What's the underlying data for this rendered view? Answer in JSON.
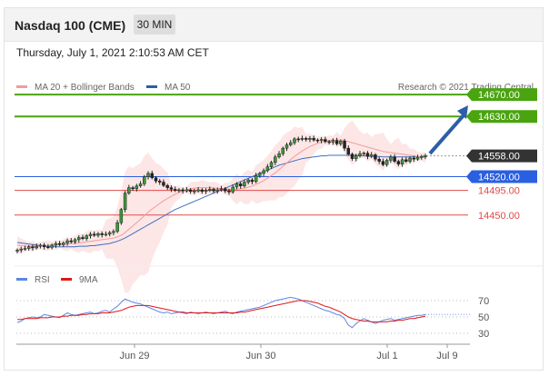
{
  "header": {
    "title": "Nasdaq 100 (CME)",
    "timeframe": "30 MIN"
  },
  "datetime": "Thursday, July 1, 2021 2:10:53 AM CET",
  "legend": {
    "ma20": "MA 20 + Bollinger Bands",
    "ma50": "MA 50",
    "credit": "Research © 2021 Trading Central",
    "rsi": "RSI",
    "ma9": "9MA"
  },
  "colors": {
    "green": "#4aa40f",
    "blue": "#2a5fe0",
    "red": "#e04a4a",
    "ma20": "#f29b9b",
    "ma50": "#3f6fc0",
    "arrow": "#2d5ea8",
    "current": "#333333",
    "rsi": "#5b86e5",
    "ma9": "#e01818"
  },
  "levels": [
    {
      "value": "14670.00",
      "type": "resistance",
      "color": "#4aa40f"
    },
    {
      "value": "14630.00",
      "type": "resistance",
      "color": "#4aa40f"
    },
    {
      "value": "14558.00",
      "type": "current",
      "color": "#333333"
    },
    {
      "value": "14520.00",
      "type": "pivot",
      "color": "#2a5fe0"
    },
    {
      "value": "14495.00",
      "type": "support",
      "color": "#e04a4a"
    },
    {
      "value": "14450.00",
      "type": "support",
      "color": "#e04a4a"
    }
  ],
  "rsi_levels": [
    "70",
    "50",
    "30"
  ],
  "x_labels": [
    "Jun 29",
    "Jun 30",
    "Jul 1",
    "Jul 9"
  ],
  "chart_data": {
    "type": "candlestick",
    "y_range": [
      14370,
      14690
    ],
    "closes": [
      14386,
      14388,
      14389,
      14392,
      14390,
      14393,
      14395,
      14392,
      14391,
      14395,
      14398,
      14396,
      14399,
      14403,
      14401,
      14405,
      14409,
      14407,
      14412,
      14415,
      14413,
      14416,
      14414,
      14415,
      14418,
      14420,
      14436,
      14460,
      14490,
      14500,
      14498,
      14503,
      14507,
      14520,
      14526,
      14518,
      14512,
      14510,
      14504,
      14500,
      14497,
      14495,
      14496,
      14494,
      14496,
      14493,
      14494,
      14496,
      14493,
      14495,
      14497,
      14494,
      14496,
      14498,
      14494,
      14492,
      14501,
      14507,
      14503,
      14510,
      14514,
      14511,
      14522,
      14526,
      14531,
      14538,
      14546,
      14556,
      14562,
      14572,
      14578,
      14582,
      14589,
      14588,
      14590,
      14588,
      14590,
      14587,
      14586,
      14588,
      14584,
      14583,
      14586,
      14580,
      14585,
      14572,
      14561,
      14553,
      14558,
      14562,
      14563,
      14557,
      14560,
      14552,
      14548,
      14542,
      14550,
      14556,
      14548,
      14543,
      14551,
      14548,
      14554,
      14552,
      14555,
      14557,
      14558
    ],
    "ma20": [
      14395,
      14394,
      14393,
      14393,
      14393,
      14393,
      14394,
      14394,
      14394,
      14395,
      14395,
      14396,
      14396,
      14397,
      14398,
      14398,
      14399,
      14400,
      14401,
      14402,
      14403,
      14404,
      14405,
      14406,
      14407,
      14408,
      14410,
      14413,
      14418,
      14424,
      14430,
      14436,
      14442,
      14449,
      14455,
      14461,
      14466,
      14471,
      14476,
      14480,
      14484,
      14488,
      14491,
      14494,
      14496,
      14498,
      14499,
      14500,
      14500,
      14500,
      14500,
      14499,
      14499,
      14498,
      14498,
      14497,
      14497,
      14497,
      14498,
      14499,
      14501,
      14503,
      14506,
      14509,
      14513,
      14517,
      14522,
      14527,
      14533,
      14539,
      14545,
      14551,
      14557,
      14562,
      14567,
      14571,
      14575,
      14578,
      14581,
      14583,
      14585,
      14586,
      14587,
      14587,
      14587,
      14586,
      14584,
      14582,
      14580,
      14578,
      14576,
      14574,
      14572,
      14570,
      14568,
      14566,
      14565,
      14564,
      14563,
      14562,
      14561,
      14560,
      14559,
      14558,
      14557,
      14556,
      14555
    ],
    "ma50": [
      14400,
      14399,
      14398,
      14397,
      14396,
      14395,
      14394,
      14394,
      14393,
      14393,
      14392,
      14392,
      14392,
      14392,
      14392,
      14392,
      14393,
      14393,
      14393,
      14394,
      14394,
      14395,
      14396,
      14397,
      14398,
      14400,
      14402,
      14405,
      14408,
      14412,
      14416,
      14420,
      14424,
      14428,
      14432,
      14436,
      14440,
      14444,
      14448,
      14452,
      14456,
      14460,
      14463,
      14466,
      14469,
      14472,
      14475,
      14478,
      14481,
      14484,
      14487,
      14490,
      14493,
      14496,
      14499,
      14502,
      14505,
      14508,
      14511,
      14514,
      14517,
      14520,
      14523,
      14526,
      14529,
      14532,
      14535,
      14538,
      14541,
      14543,
      14545,
      14547,
      14549,
      14551,
      14553,
      14554,
      14555,
      14556,
      14557,
      14558,
      14558,
      14559,
      14559,
      14559,
      14559,
      14559,
      14559,
      14559,
      14559,
      14558,
      14558,
      14558,
      14557,
      14557,
      14557,
      14556,
      14556,
      14556,
      14556,
      14556,
      14556,
      14556,
      14556,
      14556,
      14556,
      14556,
      14556
    ],
    "rsi": [
      43,
      45,
      48,
      49,
      50,
      49,
      50,
      53,
      52,
      51,
      50,
      49,
      52,
      55,
      53,
      52,
      53,
      54,
      55,
      56,
      54,
      55,
      57,
      58,
      56,
      60,
      63,
      68,
      72,
      70,
      68,
      67,
      66,
      64,
      62,
      60,
      58,
      56,
      55,
      56,
      54,
      55,
      56,
      55,
      54,
      56,
      55,
      54,
      55,
      56,
      55,
      54,
      55,
      56,
      57,
      55,
      54,
      56,
      57,
      58,
      59,
      60,
      61,
      62,
      64,
      66,
      68,
      70,
      71,
      72,
      73,
      74,
      73,
      72,
      70,
      68,
      66,
      64,
      62,
      60,
      58,
      57,
      55,
      53,
      52,
      48,
      40,
      37,
      42,
      45,
      48,
      46,
      44,
      42,
      44,
      46,
      47,
      48,
      46,
      47,
      48,
      49,
      50,
      51,
      52,
      52,
      53
    ],
    "ma9": [
      47,
      47,
      48,
      48,
      48,
      48,
      49,
      49,
      49,
      50,
      50,
      50,
      51,
      51,
      52,
      52,
      52,
      53,
      53,
      54,
      54,
      54,
      55,
      55,
      55,
      56,
      57,
      58,
      60,
      62,
      63,
      64,
      64,
      64,
      64,
      63,
      62,
      61,
      60,
      59,
      58,
      57,
      56,
      56,
      55,
      55,
      55,
      55,
      55,
      55,
      55,
      55,
      55,
      55,
      55,
      55,
      55,
      55,
      56,
      56,
      57,
      58,
      59,
      60,
      61,
      62,
      63,
      64,
      65,
      66,
      67,
      68,
      69,
      70,
      70,
      70,
      69,
      68,
      67,
      65,
      63,
      62,
      60,
      58,
      56,
      53,
      50,
      48,
      47,
      46,
      45,
      45,
      44,
      44,
      44,
      44,
      44,
      45,
      45,
      46,
      46,
      47,
      48,
      48,
      49,
      50,
      51
    ]
  }
}
